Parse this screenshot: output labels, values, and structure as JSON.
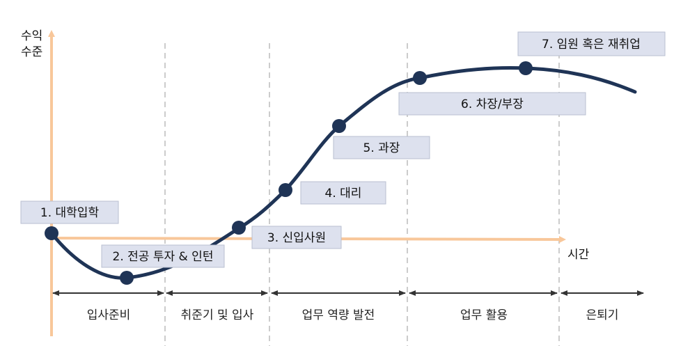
{
  "axis": {
    "y_label_line1": "수익",
    "y_label_line2": "수준",
    "x_label": "시간",
    "color": "#F8C79A"
  },
  "curve": {
    "color": "#1F3456"
  },
  "box_fill": "#DDE1EE",
  "milestones": [
    {
      "label": "1. 대학입학"
    },
    {
      "label": "2. 전공 투자 & 인턴"
    },
    {
      "label": "3. 신입사원"
    },
    {
      "label": "4. 대리"
    },
    {
      "label": "5. 과장"
    },
    {
      "label": "6. 차장/부장"
    },
    {
      "label": "7. 임원 혹은 재취업"
    }
  ],
  "stages": [
    {
      "label": "입사준비"
    },
    {
      "label": "취준기 및 입사"
    },
    {
      "label": "업무 역량 발전"
    },
    {
      "label": "업무 활용"
    },
    {
      "label": "은퇴기"
    }
  ]
}
